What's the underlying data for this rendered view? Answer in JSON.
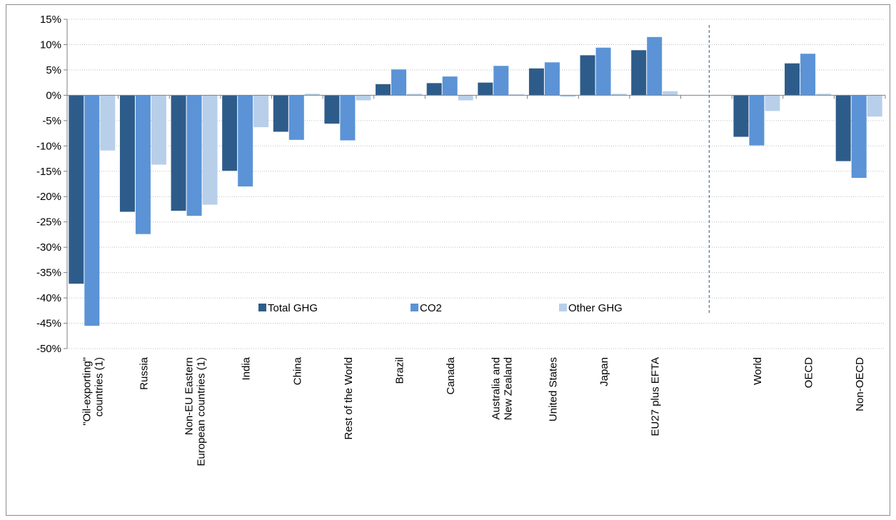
{
  "chart_data": {
    "type": "bar",
    "title": "",
    "xlabel": "",
    "ylabel": "",
    "ylim": [
      -50,
      15
    ],
    "y_ticks": [
      "15%",
      "10%",
      "5%",
      "0%",
      "-5%",
      "-10%",
      "-15%",
      "-20%",
      "-25%",
      "-30%",
      "-35%",
      "-40%",
      "-45%",
      "-50%"
    ],
    "grid": "horizontal dotted",
    "legend_position": "inside-bottom-center",
    "categories": [
      [
        "\"Oil-exporting\"",
        "countries (1)"
      ],
      [
        "Russia"
      ],
      [
        "Non-EU Eastern",
        "European countries (1)"
      ],
      [
        "India"
      ],
      [
        "China"
      ],
      [
        "Rest of the World"
      ],
      [
        "Brazil"
      ],
      [
        "Canada"
      ],
      [
        "Australia and",
        "New Zealand"
      ],
      [
        "United States"
      ],
      [
        "Japan"
      ],
      [
        "EU27 plus EFTA"
      ],
      [],
      [
        "World"
      ],
      [
        "OECD"
      ],
      [
        "Non-OECD"
      ]
    ],
    "series": [
      {
        "name": "Total GHG",
        "color": "#2e5c8a",
        "values": [
          -37.2,
          -23.0,
          -22.8,
          -14.9,
          -7.2,
          -5.6,
          2.2,
          2.4,
          2.5,
          5.3,
          7.9,
          8.9,
          null,
          -8.2,
          6.3,
          -13.0
        ]
      },
      {
        "name": "CO2",
        "color": "#5b93d6",
        "values": [
          -45.5,
          -27.4,
          -23.8,
          -18.0,
          -8.8,
          -8.9,
          5.1,
          3.7,
          5.8,
          6.5,
          9.4,
          11.5,
          null,
          -9.9,
          8.2,
          -16.3
        ]
      },
      {
        "name": "Other GHG",
        "color": "#b8cfea",
        "values": [
          -10.9,
          -13.7,
          -21.6,
          -6.3,
          0.3,
          -1.0,
          0.3,
          -1.0,
          0.2,
          -0.3,
          0.3,
          0.8,
          null,
          -3.1,
          0.3,
          -4.2
        ]
      }
    ],
    "separator_after_category": "EU27 plus EFTA"
  }
}
